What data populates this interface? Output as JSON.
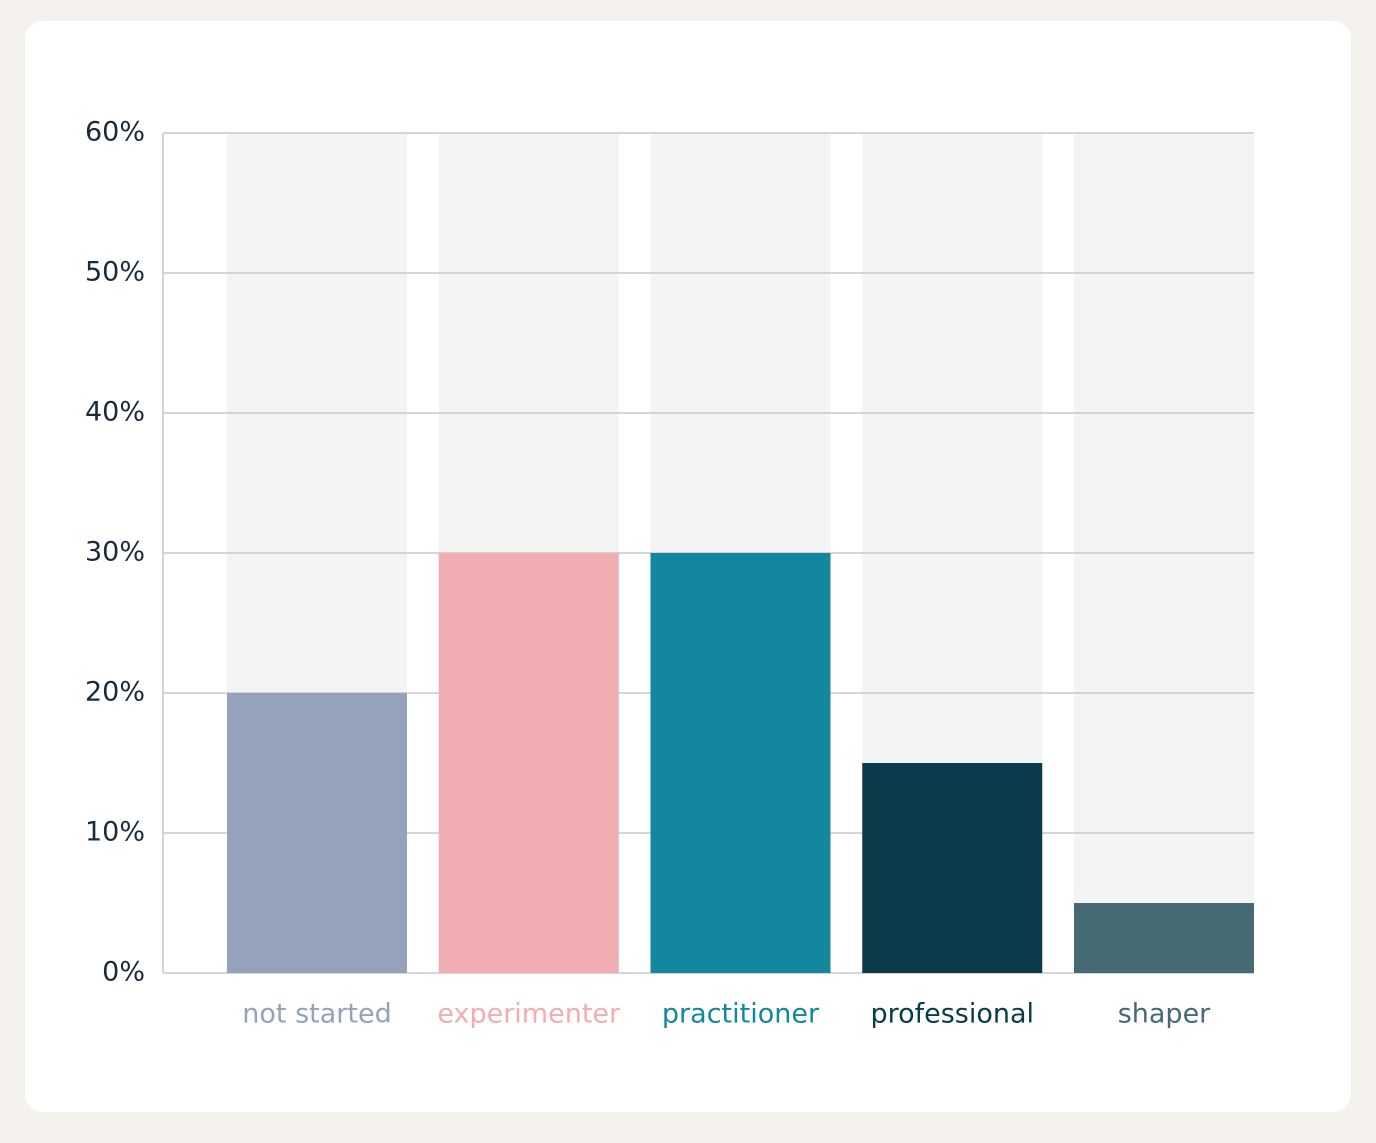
{
  "chart_data": {
    "type": "bar",
    "categories": [
      "not started",
      "experimenter",
      "practitioner",
      "professional",
      "shaper"
    ],
    "values": [
      20,
      30,
      30,
      15,
      5
    ],
    "colors": [
      "#94a3bb",
      "#f0adb2",
      "#12879d",
      "#0b3a4b",
      "#466a74"
    ],
    "ylim": [
      0,
      60
    ],
    "yticks": [
      {
        "value": 0,
        "label": "0%"
      },
      {
        "value": 10,
        "label": "10%"
      },
      {
        "value": 20,
        "label": "20%"
      },
      {
        "value": 30,
        "label": "30%"
      },
      {
        "value": 40,
        "label": "40%"
      },
      {
        "value": 50,
        "label": "50%"
      },
      {
        "value": 60,
        "label": "60%"
      }
    ],
    "grid": true
  }
}
